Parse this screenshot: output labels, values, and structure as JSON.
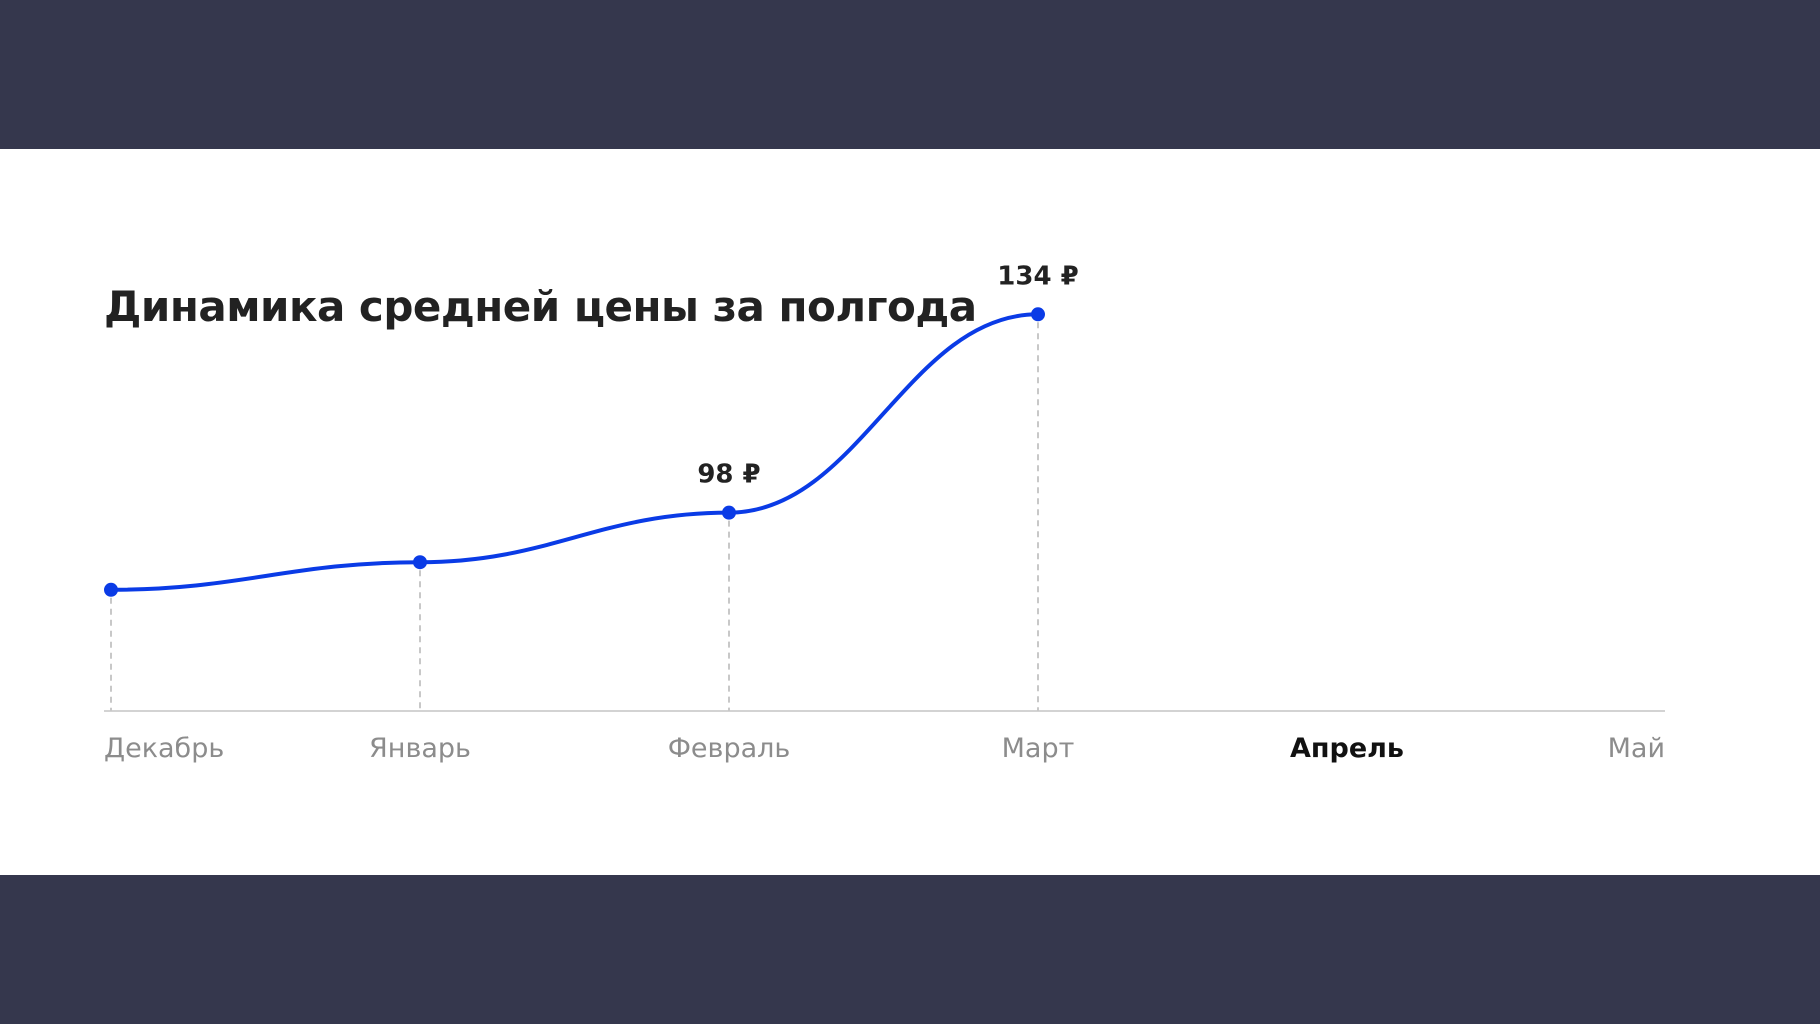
{
  "chart_data": {
    "type": "line",
    "title": "Динамика средней цены за полгода",
    "categories": [
      "Декабрь",
      "Январь",
      "Февраль",
      "Март",
      "Апрель",
      "Май"
    ],
    "current_category": "Апрель",
    "series": [
      {
        "values": [
          84,
          89,
          98,
          134,
          null,
          null
        ]
      }
    ],
    "data_labels": [
      {
        "index": 2,
        "text": "98 ₽"
      },
      {
        "index": 3,
        "text": "134 ₽"
      }
    ],
    "ylim": [
      62,
      164
    ],
    "grid": false,
    "colors": {
      "line": "#0a3be6",
      "point": "#0a3be6",
      "axis": "#d3d3d3",
      "dropline": "#c8c8c8",
      "tick": "#8c8c8c",
      "tick_current": "#111111",
      "title": "#222222",
      "band": "#35374d",
      "card": "#ffffff"
    }
  }
}
